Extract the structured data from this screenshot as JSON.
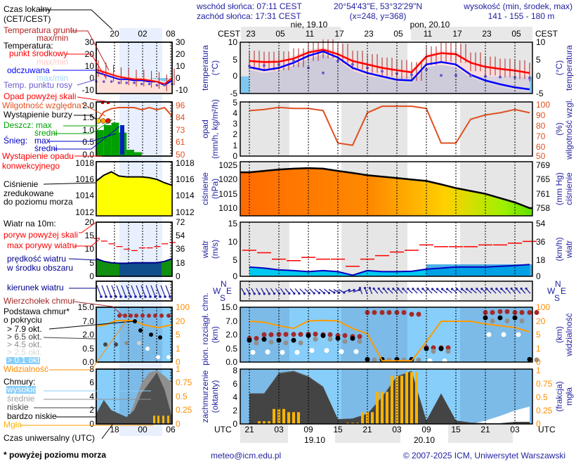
{
  "header": {
    "sunrise": "wschód słońca: 07:11 CEST",
    "sunset": "zachód słońca: 17:31 CEST",
    "coords": "20°54'43\"E, 53°32'29\"N",
    "grid": "(x=248,  y=368)",
    "elevation_title": "wysokość (min, środek, max)",
    "elevation": "141 - 155 - 180 m"
  },
  "top_axis": {
    "tz_left": "CEST",
    "tz_right": "CEST",
    "hours": [
      "23",
      "05",
      "11",
      "17",
      "23",
      "05",
      "11",
      "17",
      "23",
      "05"
    ],
    "days": [
      "nie, 19.10",
      "pon, 20.10"
    ]
  },
  "bottom_axis": {
    "tz_left": "UTC",
    "tz_right": "UTC",
    "hours": [
      "21",
      "03",
      "09",
      "15",
      "21",
      "03",
      "09",
      "15",
      "21",
      "03"
    ],
    "dates": [
      "19.10",
      "20.10"
    ]
  },
  "panels": {
    "temp": {
      "ylabel": "temperatura",
      "unit": "(°C)",
      "rlabel": "temperatura",
      "runit": "(°C)",
      "left_ticks": [
        "10",
        "5",
        "0",
        "-5"
      ],
      "right_ticks": [
        "10",
        "5",
        "0",
        "-5"
      ]
    },
    "prec": {
      "ylabel": "opad",
      "unit": "(mm/h, kg/m²/h)",
      "rlabel": "wilgotność wzgl.",
      "runit": "(%)",
      "left_ticks": [
        "5",
        "4",
        "3",
        "2",
        "1",
        "0"
      ],
      "right_ticks": [
        "100",
        "90",
        "80",
        "70",
        "60",
        "50"
      ]
    },
    "pres": {
      "ylabel": "ciśnienie",
      "unit": "(hPa)",
      "rlabel": "ciśnienie",
      "runit": "(mm Hg)",
      "left_ticks": [
        "1025",
        "1020",
        "1015",
        "1010"
      ],
      "right_ticks": [
        "769",
        "765",
        "761",
        "758"
      ]
    },
    "wind": {
      "ylabel": "wiatr",
      "unit": "(m/s)",
      "rlabel": "wiatr",
      "runit": "(km/h)",
      "left_ticks": [
        "15",
        "10",
        "5",
        "0"
      ],
      "right_ticks": [
        "54",
        "36",
        "18",
        "0"
      ]
    },
    "dir": {
      "compass": [
        "N",
        "W",
        "E",
        "S"
      ]
    },
    "base": {
      "ylabel": "pion. rozciągł. chm.",
      "unit": "(km)",
      "rlabel": "widzialność",
      "runit": "(km)",
      "left_ticks": [
        "15.0",
        "7.0",
        "2.0",
        "0.5",
        "0.0"
      ],
      "right_ticks": [
        "100",
        "20",
        "5",
        "1",
        "0"
      ]
    },
    "cover": {
      "ylabel": "zachmurzenie",
      "unit": "(oktanty)",
      "rlabel": "mgła",
      "runit": "(frakcja)",
      "left_ticks": [
        "8",
        "6",
        "4",
        "2",
        "0"
      ],
      "right_ticks": [
        "1",
        "0.75",
        "0.5",
        "0.25",
        "0"
      ]
    }
  },
  "legend": {
    "local_time": "Czas lokalny",
    "local_time2": "(CET/CEST)",
    "ground_temp": "Temperatura gruntu",
    "ground_temp_mm": "max/min",
    "temperature": "Temperatura:",
    "mid_point": "punkt środkowy",
    "mid_mm": "max/min",
    "felt": "odczuwana",
    "felt_mm": "max/min",
    "dew": "Temp. punktu rosy",
    "precip_over": "Opad powyżej skali",
    "humidity": "Wilgotność względna",
    "storm": "Wystąpienie burzy",
    "rain": "Deszcz: max",
    "rain_avg": "średni",
    "snow": "Śnieg:",
    "snow_max": "max",
    "snow_avg": "średni",
    "convective": "Wystąpienie opadu",
    "convective2": "konwekcyjnego",
    "pressure1": "Ciśnienie",
    "pressure2": "zredukowane",
    "pressure3": "do poziomu morza",
    "wind": "Wiatr na 10m:",
    "gust_over": "poryw powyżej skali",
    "gust_max": "max porywy wiatru",
    "wind_speed": "prędkość wiatru",
    "wind_speed2": "w środku obszaru",
    "wind_dir": "kierunek wiatru",
    "cloud_top": "Wierzchołek chmur",
    "cloud_base": "Podstawa chmur*",
    "cloud_base2": "o pokryciu",
    "okt": [
      "> 7.9 okt.",
      "> 6.5 okt.",
      "> 4.5 okt.",
      "> 2.5 okt.",
      "> 0.1 okt."
    ],
    "visibility": "Widzialność",
    "clouds": "Chmury:",
    "high": "wysokie",
    "mid": "średnie",
    "low": "niskie",
    "very_low": "bardzo niskie",
    "fog": "Mgła",
    "utc": "Czas uniwersalny (UTC)",
    "footnote": "* powyżej poziomu morza",
    "time_top": [
      "20",
      "02",
      "08"
    ],
    "time_bottom": [
      "18",
      "00",
      "06"
    ],
    "ticks": {
      "temp_l": [
        "30",
        "20",
        "10",
        "0",
        "-10"
      ],
      "temp_r": [
        "30",
        "20",
        "10",
        "0",
        "-10"
      ],
      "prec_l": [
        "2.0",
        "1.5",
        "1.0",
        "0.5",
        "0.0"
      ],
      "prec_r": [
        "96",
        "84",
        "73",
        "61",
        "50"
      ],
      "pres_l": [
        "1018",
        "1016",
        "1014",
        "1012"
      ],
      "pres_r": [
        "1018",
        "1016",
        "1014",
        "1012"
      ],
      "wind_l": [
        "20",
        "15",
        "10",
        "5",
        "0"
      ],
      "wind_r": [
        "72",
        "54",
        "36",
        "18",
        "0"
      ],
      "base_l": [
        "15.0",
        "7.0",
        "2.0",
        "0.5",
        "0.0"
      ],
      "base_r": [
        "100",
        "20",
        "5",
        "1",
        "0"
      ],
      "cover_l": [
        "8",
        "6",
        "4",
        "2",
        "0"
      ],
      "cover_r": [
        "1",
        "0.75",
        "0.5",
        "0.25",
        "0"
      ]
    },
    "example": {
      "temp": [
        7,
        5,
        3,
        1,
        0,
        -1,
        -1,
        -2,
        -3,
        -5,
        0
      ],
      "felt": [
        5,
        3,
        1,
        -1,
        -1,
        -2,
        -2,
        -3,
        -3,
        -6,
        -2
      ],
      "dew": [
        -3,
        -3,
        -3,
        -4,
        -4,
        -4,
        -5,
        -5,
        -6,
        -6,
        -5
      ],
      "humidity": [
        80,
        90,
        93,
        94,
        94,
        94,
        92,
        94,
        92,
        94,
        86
      ],
      "rain": [
        1.0,
        1.2,
        1.3,
        0.9,
        0.2,
        0.1,
        0,
        0,
        0,
        0,
        0
      ],
      "pressure": [
        1015.7,
        1016.4,
        1016.8,
        1016.3,
        1016.2,
        1016.2,
        1016.2,
        1016.1,
        1015.9,
        1015.5,
        1015.2
      ],
      "wind": [
        6.5,
        5.5,
        5,
        4.8,
        4.8,
        5,
        5,
        5,
        5,
        5.5,
        6.5
      ],
      "gust": [
        14,
        13,
        12,
        11,
        10,
        9.5,
        10.5,
        10.5,
        11,
        12,
        12.5
      ],
      "low_cloud": [
        1.5,
        3.5,
        2,
        1.5,
        1,
        2,
        4.5,
        6,
        7.5,
        5,
        1
      ],
      "mid_cloud": [
        0,
        0,
        0,
        0,
        0,
        3,
        6,
        7.5,
        7.8,
        7,
        6
      ],
      "fog": [
        0,
        0,
        0,
        0,
        0,
        0,
        0,
        0,
        0.15,
        0.15,
        0.15
      ]
    }
  },
  "chart_data": {
    "type": "line",
    "time_step_hours": 3,
    "times_utc": [
      "18.10 21:00",
      "19.10 00:00",
      "19.10 03:00",
      "19.10 06:00",
      "19.10 09:00",
      "19.10 12:00",
      "19.10 15:00",
      "19.10 18:00",
      "19.10 21:00",
      "20.10 00:00",
      "20.10 03:00",
      "20.10 06:00",
      "20.10 09:00",
      "20.10 12:00",
      "20.10 15:00",
      "20.10 18:00",
      "20.10 21:00",
      "21.10 00:00",
      "21.10 03:00",
      "21.10 06:00"
    ],
    "temperature_mid": [
      4.5,
      4.2,
      4.3,
      5.2,
      7.0,
      7.8,
      6.5,
      4.5,
      3.5,
      2.5,
      1.8,
      1.2,
      5.8,
      6.8,
      6.5,
      4.0,
      2.8,
      2.2,
      1.7,
      1.0
    ],
    "temperature_felt": [
      2.7,
      1.8,
      2.5,
      4.0,
      6.0,
      7.3,
      5.5,
      2.5,
      1.0,
      0.0,
      -1.0,
      -1.2,
      3.5,
      4.2,
      3.5,
      0.5,
      -1.2,
      -2.3,
      -3.2,
      -3.8
    ],
    "dew_point": [
      3.0,
      3.2,
      3.5,
      4.5,
      2.5,
      1.0,
      4.5,
      3.5,
      2.5,
      1.5,
      0.8,
      0.5,
      2.0,
      0.3,
      0.3,
      0.2,
      0.0,
      -0.2,
      -0.3,
      -0.5
    ],
    "precipitation": [
      0,
      0,
      0,
      0,
      0,
      0,
      0,
      0,
      0,
      0,
      0,
      0,
      0,
      0,
      0,
      0,
      0,
      0,
      0,
      0
    ],
    "humidity": [
      92,
      93,
      95,
      94,
      94,
      92,
      62,
      60,
      90,
      96,
      96,
      96,
      94,
      62,
      62,
      84,
      88,
      90,
      93,
      90
    ],
    "pressure_hpa": [
      1022.5,
      1023.0,
      1023.5,
      1023.8,
      1024.0,
      1023.8,
      1023.0,
      1022.3,
      1021.5,
      1021.0,
      1020.5,
      1020.0,
      1019.5,
      1018.3,
      1017.0,
      1016.0,
      1015.0,
      1013.5,
      1012.0,
      1010.0
    ],
    "wind_speed": [
      2.8,
      2.5,
      2.0,
      1.8,
      1.5,
      1.8,
      1.5,
      0.5,
      1.8,
      1.5,
      1.5,
      1.6,
      2.2,
      2.5,
      2.8,
      2.8,
      2.8,
      3.0,
      3.2,
      3.5
    ],
    "wind_gust": [
      7.5,
      6.8,
      5.0,
      4.6,
      5.5,
      5.0,
      5.0,
      3.0,
      5.0,
      6.0,
      7.0,
      7.5,
      9.0,
      8.5,
      8.5,
      8.5,
      9.0,
      9.0,
      9.5,
      10.0
    ],
    "wind_direction_deg": [
      330,
      330,
      325,
      320,
      315,
      310,
      300,
      250,
      160,
      140,
      135,
      135,
      135,
      130,
      130,
      130,
      135,
      135,
      140,
      140
    ],
    "visibility_km": [
      20,
      19,
      15,
      12,
      22,
      25,
      22,
      12,
      6,
      0.1,
      0.1,
      0.1,
      3,
      20,
      20,
      20,
      17,
      15,
      13,
      8
    ],
    "cloud_top_km": [
      1.6,
      2.0,
      2.1,
      2.1,
      2.2,
      2.0,
      1.9,
      1.8,
      12,
      12,
      12,
      11,
      0.6,
      0.6,
      0,
      0,
      12,
      12.5,
      12,
      12
    ],
    "cloud_base_km": [
      1.4,
      1.5,
      1.4,
      1.4,
      1.9,
      1.9,
      1.6,
      1.6,
      0.1,
      0.1,
      0.1,
      0.1,
      0.5,
      0.5,
      0,
      0,
      9,
      9,
      9,
      0.1
    ],
    "low_cloud_octants": [
      4.5,
      4.5,
      7.5,
      7.8,
      7.0,
      5.5,
      0.7,
      0.8,
      1.5,
      4.0,
      7.0,
      7.8,
      0.5,
      4.5,
      0.5,
      0.2,
      0.1,
      0.1,
      0.3,
      0.3
    ],
    "high_cloud_octants": [
      0,
      0,
      0,
      0,
      0,
      0,
      0,
      0,
      0,
      0,
      0,
      0,
      0,
      0,
      0,
      0,
      0.5,
      1.2,
      2.0,
      2.6
    ],
    "fog_fraction": [
      0,
      0.05,
      0.28,
      0.22,
      0,
      0,
      0,
      0.02,
      0.22,
      0.6,
      0.9,
      0.97,
      0,
      0,
      0,
      0,
      0,
      0,
      0,
      0
    ]
  },
  "footer": {
    "email": "meteo@icm.edu.pl",
    "copyright": "© 2007-2025 ICM, Uniwersytet Warszawski"
  },
  "colors": {
    "text_navy": "#1f1fa0",
    "temp_red": "#ff0000",
    "felt_blue": "#0000ff",
    "dew": "#6a5acd",
    "humidity": "#e05020",
    "pressure_fill_start": "#ff6a00",
    "pressure_fill_end": "#80ff00",
    "wind_fill": "#00c8f0",
    "sky": "#87cefa",
    "fog": "#ffb400",
    "visibility": "#ff9a00",
    "night": "#e6e6e6"
  }
}
